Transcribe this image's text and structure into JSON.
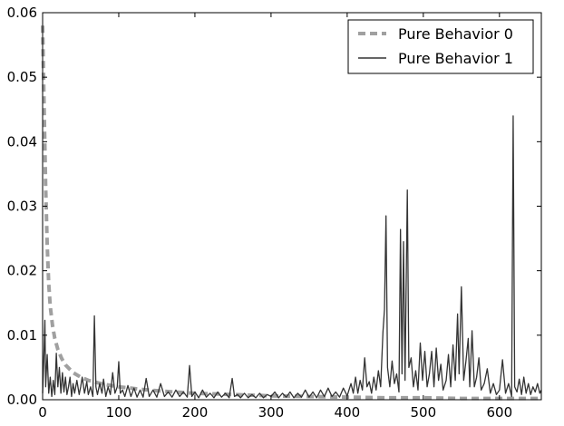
{
  "chart_data": {
    "type": "line",
    "title": "",
    "xlabel": "",
    "ylabel": "",
    "xlim": [
      0,
      655
    ],
    "ylim": [
      0,
      0.06
    ],
    "x_ticks": [
      0,
      100,
      200,
      300,
      400,
      500,
      600
    ],
    "y_ticks": [
      0.0,
      0.01,
      0.02,
      0.03,
      0.04,
      0.05,
      0.06
    ],
    "x_tick_labels": [
      "0",
      "100",
      "200",
      "300",
      "400",
      "500",
      "600"
    ],
    "y_tick_labels": [
      "0.00",
      "0.01",
      "0.02",
      "0.03",
      "0.04",
      "0.05",
      "0.06"
    ],
    "grid": false,
    "legend_position": "top-right",
    "series": [
      {
        "name": "Pure Behavior 0",
        "style": "dashed",
        "color": "#a0a0a0",
        "points": [
          [
            0,
            0.058
          ],
          [
            2,
            0.045
          ],
          [
            4,
            0.033
          ],
          [
            6,
            0.024
          ],
          [
            8,
            0.018
          ],
          [
            10,
            0.0145
          ],
          [
            13,
            0.0115
          ],
          [
            16,
            0.0095
          ],
          [
            20,
            0.0078
          ],
          [
            25,
            0.0064
          ],
          [
            30,
            0.0054
          ],
          [
            40,
            0.0042
          ],
          [
            50,
            0.0035
          ],
          [
            60,
            0.003
          ],
          [
            80,
            0.0024
          ],
          [
            100,
            0.002
          ],
          [
            130,
            0.0016
          ],
          [
            160,
            0.0013
          ],
          [
            200,
            0.001
          ],
          [
            250,
            0.0008
          ],
          [
            300,
            0.0006
          ],
          [
            350,
            0.0005
          ],
          [
            400,
            0.0004
          ],
          [
            450,
            0.0003
          ],
          [
            500,
            0.0003
          ],
          [
            550,
            0.0002
          ],
          [
            600,
            0.0002
          ],
          [
            655,
            0.0002
          ]
        ]
      },
      {
        "name": "Pure Behavior 1",
        "style": "solid",
        "color": "#333333",
        "points": [
          [
            0,
            0.001
          ],
          [
            2,
            0.008
          ],
          [
            3,
            0.0123
          ],
          [
            4,
            0.002
          ],
          [
            6,
            0.007
          ],
          [
            8,
            0.001
          ],
          [
            10,
            0.0035
          ],
          [
            12,
            0.0005
          ],
          [
            14,
            0.003
          ],
          [
            16,
            0.0008
          ],
          [
            18,
            0.0072
          ],
          [
            20,
            0.002
          ],
          [
            22,
            0.005
          ],
          [
            24,
            0.001
          ],
          [
            26,
            0.0042
          ],
          [
            28,
            0.0012
          ],
          [
            30,
            0.0035
          ],
          [
            32,
            0.0008
          ],
          [
            34,
            0.002
          ],
          [
            36,
            0.0035
          ],
          [
            38,
            0.0005
          ],
          [
            40,
            0.0025
          ],
          [
            42,
            0.001
          ],
          [
            45,
            0.003
          ],
          [
            48,
            0.0008
          ],
          [
            50,
            0.002
          ],
          [
            52,
            0.0035
          ],
          [
            55,
            0.001
          ],
          [
            58,
            0.0028
          ],
          [
            60,
            0.0008
          ],
          [
            63,
            0.002
          ],
          [
            66,
            0.0005
          ],
          [
            68,
            0.013
          ],
          [
            70,
            0.002
          ],
          [
            72,
            0.0008
          ],
          [
            75,
            0.0025
          ],
          [
            78,
            0.001
          ],
          [
            80,
            0.0032
          ],
          [
            83,
            0.0005
          ],
          [
            86,
            0.002
          ],
          [
            89,
            0.0008
          ],
          [
            92,
            0.0042
          ],
          [
            95,
            0.001
          ],
          [
            98,
            0.002
          ],
          [
            100,
            0.0059
          ],
          [
            102,
            0.001
          ],
          [
            105,
            0.0015
          ],
          [
            108,
            0.0005
          ],
          [
            112,
            0.0022
          ],
          [
            116,
            0.0005
          ],
          [
            120,
            0.0018
          ],
          [
            124,
            0.0004
          ],
          [
            128,
            0.0015
          ],
          [
            132,
            0.0004
          ],
          [
            136,
            0.0033
          ],
          [
            140,
            0.0005
          ],
          [
            145,
            0.0015
          ],
          [
            150,
            0.0004
          ],
          [
            155,
            0.0025
          ],
          [
            160,
            0.0005
          ],
          [
            165,
            0.0012
          ],
          [
            170,
            0.0004
          ],
          [
            175,
            0.0015
          ],
          [
            180,
            0.0005
          ],
          [
            185,
            0.0012
          ],
          [
            190,
            0.0004
          ],
          [
            193,
            0.0053
          ],
          [
            196,
            0.0005
          ],
          [
            200,
            0.0012
          ],
          [
            205,
            0.0003
          ],
          [
            210,
            0.0015
          ],
          [
            215,
            0.0004
          ],
          [
            220,
            0.001
          ],
          [
            225,
            0.0003
          ],
          [
            230,
            0.0012
          ],
          [
            235,
            0.0004
          ],
          [
            240,
            0.001
          ],
          [
            245,
            0.0003
          ],
          [
            249,
            0.0033
          ],
          [
            252,
            0.0005
          ],
          [
            256,
            0.0008
          ],
          [
            260,
            0.0003
          ],
          [
            265,
            0.001
          ],
          [
            270,
            0.0003
          ],
          [
            275,
            0.0008
          ],
          [
            280,
            0.0003
          ],
          [
            285,
            0.001
          ],
          [
            290,
            0.0003
          ],
          [
            295,
            0.0008
          ],
          [
            300,
            0.0005
          ],
          [
            305,
            0.0012
          ],
          [
            310,
            0.0003
          ],
          [
            315,
            0.001
          ],
          [
            320,
            0.0004
          ],
          [
            325,
            0.0012
          ],
          [
            330,
            0.0003
          ],
          [
            335,
            0.001
          ],
          [
            340,
            0.0004
          ],
          [
            345,
            0.0015
          ],
          [
            350,
            0.0004
          ],
          [
            355,
            0.0012
          ],
          [
            360,
            0.0003
          ],
          [
            365,
            0.0015
          ],
          [
            370,
            0.0005
          ],
          [
            375,
            0.0018
          ],
          [
            380,
            0.0005
          ],
          [
            385,
            0.0012
          ],
          [
            390,
            0.0004
          ],
          [
            395,
            0.0018
          ],
          [
            400,
            0.0006
          ],
          [
            405,
            0.0025
          ],
          [
            408,
            0.001
          ],
          [
            411,
            0.0035
          ],
          [
            414,
            0.001
          ],
          [
            417,
            0.003
          ],
          [
            420,
            0.0015
          ],
          [
            423,
            0.0065
          ],
          [
            426,
            0.002
          ],
          [
            429,
            0.0028
          ],
          [
            432,
            0.001
          ],
          [
            435,
            0.0035
          ],
          [
            438,
            0.0015
          ],
          [
            441,
            0.0045
          ],
          [
            444,
            0.002
          ],
          [
            447,
            0.0105
          ],
          [
            449,
            0.014
          ],
          [
            451,
            0.0285
          ],
          [
            453,
            0.005
          ],
          [
            456,
            0.002
          ],
          [
            459,
            0.006
          ],
          [
            462,
            0.0025
          ],
          [
            465,
            0.004
          ],
          [
            468,
            0.0012
          ],
          [
            470,
            0.0264
          ],
          [
            472,
            0.004
          ],
          [
            474,
            0.0245
          ],
          [
            476,
            0.003
          ],
          [
            479,
            0.0325
          ],
          [
            481,
            0.005
          ],
          [
            484,
            0.0065
          ],
          [
            487,
            0.002
          ],
          [
            490,
            0.0045
          ],
          [
            493,
            0.0015
          ],
          [
            496,
            0.0088
          ],
          [
            499,
            0.003
          ],
          [
            502,
            0.0075
          ],
          [
            505,
            0.002
          ],
          [
            508,
            0.004
          ],
          [
            511,
            0.0075
          ],
          [
            514,
            0.002
          ],
          [
            517,
            0.008
          ],
          [
            520,
            0.003
          ],
          [
            523,
            0.0055
          ],
          [
            526,
            0.0015
          ],
          [
            530,
            0.003
          ],
          [
            533,
            0.007
          ],
          [
            536,
            0.002
          ],
          [
            539,
            0.0085
          ],
          [
            542,
            0.003
          ],
          [
            545,
            0.0133
          ],
          [
            547,
            0.004
          ],
          [
            550,
            0.0175
          ],
          [
            553,
            0.003
          ],
          [
            556,
            0.006
          ],
          [
            559,
            0.0095
          ],
          [
            561,
            0.002
          ],
          [
            564,
            0.0107
          ],
          [
            567,
            0.002
          ],
          [
            570,
            0.0035
          ],
          [
            573,
            0.0065
          ],
          [
            576,
            0.0015
          ],
          [
            580,
            0.0025
          ],
          [
            584,
            0.0048
          ],
          [
            588,
            0.001
          ],
          [
            592,
            0.0025
          ],
          [
            596,
            0.0008
          ],
          [
            600,
            0.0015
          ],
          [
            604,
            0.0062
          ],
          [
            608,
            0.001
          ],
          [
            612,
            0.0025
          ],
          [
            616,
            0.0005
          ],
          [
            618,
            0.044
          ],
          [
            620,
            0.002
          ],
          [
            623,
            0.0012
          ],
          [
            626,
            0.0032
          ],
          [
            629,
            0.0008
          ],
          [
            632,
            0.0035
          ],
          [
            635,
            0.001
          ],
          [
            638,
            0.0025
          ],
          [
            641,
            0.0008
          ],
          [
            644,
            0.002
          ],
          [
            647,
            0.0012
          ],
          [
            650,
            0.0025
          ],
          [
            653,
            0.001
          ],
          [
            655,
            0.0015
          ]
        ]
      }
    ]
  }
}
